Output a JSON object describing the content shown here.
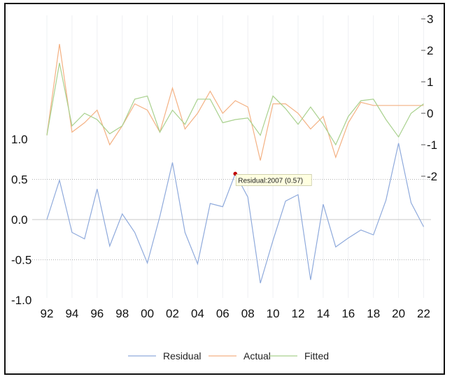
{
  "chart_data": {
    "type": "line",
    "x": [
      "92",
      "93",
      "94",
      "95",
      "96",
      "97",
      "98",
      "99",
      "00",
      "01",
      "02",
      "03",
      "04",
      "05",
      "06",
      "07",
      "08",
      "09",
      "10",
      "11",
      "12",
      "13",
      "14",
      "15",
      "16",
      "17",
      "18",
      "19",
      "20",
      "21",
      "22"
    ],
    "x_tick_labels": [
      "92",
      "94",
      "96",
      "98",
      "00",
      "02",
      "04",
      "06",
      "08",
      "10",
      "12",
      "14",
      "16",
      "18",
      "20",
      "22"
    ],
    "left_axis": {
      "ylim": [
        -1.0,
        1.0
      ],
      "ticks": [
        "1.0",
        "0.5",
        "0.0",
        "-0.5",
        "-1.0"
      ]
    },
    "right_axis": {
      "ylim": [
        -2.0,
        3.0
      ],
      "ticks": [
        "3",
        "2",
        "1",
        "0",
        "-1",
        "-2"
      ]
    },
    "series": [
      {
        "name": "Residual",
        "axis": "left",
        "color": "#8FAADC",
        "values": [
          0.0,
          0.49,
          -0.16,
          -0.24,
          0.38,
          -0.33,
          0.07,
          -0.16,
          -0.54,
          0.04,
          0.71,
          -0.16,
          -0.55,
          0.2,
          0.16,
          0.57,
          0.28,
          -0.79,
          -0.26,
          0.23,
          0.31,
          -0.75,
          0.19,
          -0.34,
          -0.23,
          -0.13,
          -0.19,
          0.24,
          0.95,
          0.21,
          -0.09
        ]
      },
      {
        "name": "Actual",
        "axis": "right",
        "color": "#F4B183",
        "values": [
          -0.7,
          2.2,
          -0.6,
          -0.3,
          0.1,
          -1.0,
          -0.4,
          0.3,
          0.1,
          -0.6,
          0.8,
          -0.5,
          0.0,
          0.7,
          0.0,
          0.4,
          0.2,
          -1.5,
          0.3,
          0.3,
          0.0,
          -0.5,
          -0.1,
          -1.4,
          -0.3,
          0.35,
          0.25,
          0.25,
          0.25,
          0.25,
          0.25
        ]
      },
      {
        "name": "Fitted",
        "axis": "right",
        "color": "#A9D18E",
        "values": [
          -0.7,
          1.6,
          -0.4,
          0.0,
          -0.2,
          -0.65,
          -0.4,
          0.45,
          0.55,
          -0.6,
          0.1,
          -0.35,
          0.45,
          0.45,
          -0.3,
          -0.2,
          -0.15,
          -0.7,
          0.55,
          0.15,
          -0.35,
          0.2,
          -0.35,
          -1.0,
          -0.1,
          0.4,
          0.45,
          -0.2,
          -0.75,
          0.0,
          0.3
        ]
      }
    ],
    "tooltip": {
      "text": "Residual:2007 (0.57)",
      "series": "Residual",
      "index": 15
    },
    "legend": {
      "position": "bottom-center",
      "entries": [
        "Residual",
        "Actual",
        "Fitted"
      ]
    },
    "grid": "vertical-light"
  }
}
